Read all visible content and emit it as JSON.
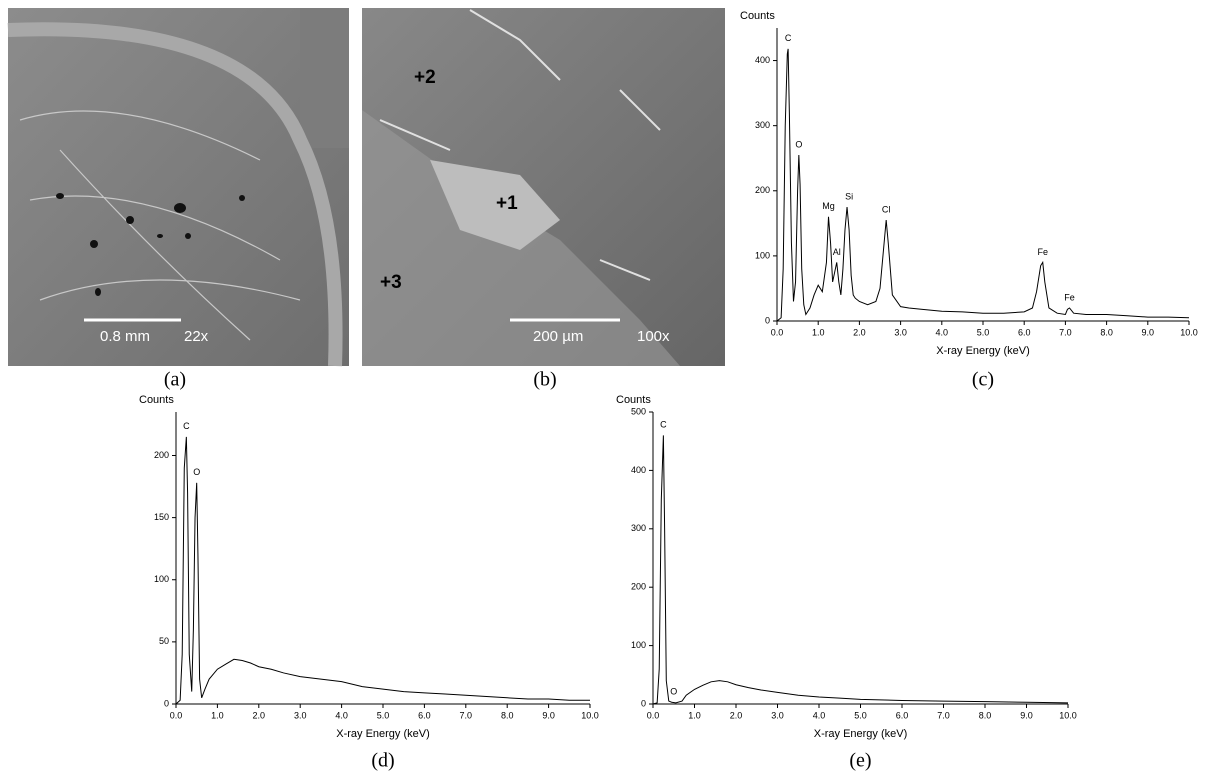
{
  "images": [
    {
      "caption": "(a)",
      "scale_bar": "0.8 mm",
      "magnification": "22x"
    },
    {
      "caption": "(b)",
      "scale_bar": "200 µm",
      "magnification": "100x",
      "points": [
        "+2",
        "+1",
        "+3"
      ]
    }
  ],
  "chart_data": [
    {
      "type": "line",
      "caption": "(c)",
      "y_label": "Counts",
      "x_label": "X-ray Energy (keV)",
      "color": "#000000",
      "xlim": [
        0,
        10
      ],
      "ylim": [
        0,
        450
      ],
      "xticks": [
        {
          "value": 0,
          "label": "0.0"
        },
        {
          "value": 1,
          "label": "1.0"
        },
        {
          "value": 2,
          "label": "2.0"
        },
        {
          "value": 3,
          "label": "3.0"
        },
        {
          "value": 4,
          "label": "4.0"
        },
        {
          "value": 5,
          "label": "5.0"
        },
        {
          "value": 6,
          "label": "6.0"
        },
        {
          "value": 7,
          "label": "7.0"
        },
        {
          "value": 8,
          "label": "8.0"
        },
        {
          "value": 9,
          "label": "9.0"
        },
        {
          "value": 10,
          "label": "10.0"
        }
      ],
      "yticks": [
        0,
        100,
        200,
        300,
        400
      ],
      "x": [
        0.0,
        0.1,
        0.15,
        0.2,
        0.25,
        0.27,
        0.3,
        0.35,
        0.4,
        0.45,
        0.5,
        0.53,
        0.56,
        0.6,
        0.65,
        0.7,
        0.8,
        0.9,
        1.0,
        1.1,
        1.2,
        1.25,
        1.3,
        1.35,
        1.4,
        1.45,
        1.5,
        1.55,
        1.6,
        1.65,
        1.7,
        1.75,
        1.8,
        1.85,
        1.9,
        2.0,
        2.2,
        2.4,
        2.5,
        2.6,
        2.65,
        2.7,
        2.8,
        3.0,
        3.2,
        3.5,
        4.0,
        4.5,
        5.0,
        5.5,
        6.0,
        6.2,
        6.3,
        6.4,
        6.45,
        6.5,
        6.6,
        6.8,
        7.0,
        7.05,
        7.1,
        7.2,
        7.5,
        8.0,
        8.5,
        9.0,
        9.5,
        10.0
      ],
      "values": [
        0,
        5,
        80,
        300,
        410,
        418,
        320,
        120,
        30,
        60,
        200,
        255,
        210,
        80,
        25,
        10,
        20,
        40,
        55,
        45,
        90,
        160,
        120,
        60,
        75,
        90,
        60,
        40,
        80,
        140,
        175,
        140,
        70,
        40,
        35,
        30,
        25,
        30,
        50,
        120,
        155,
        120,
        40,
        22,
        20,
        18,
        15,
        14,
        12,
        12,
        14,
        20,
        45,
        85,
        90,
        60,
        20,
        12,
        10,
        18,
        20,
        12,
        10,
        10,
        8,
        6,
        6,
        5
      ],
      "annotations": [
        {
          "text": "C",
          "x": 0.27
        },
        {
          "text": "O",
          "x": 0.53
        },
        {
          "text": "Mg",
          "x": 1.25
        },
        {
          "text": "Al",
          "x": 1.45
        },
        {
          "text": "Si",
          "x": 1.75
        },
        {
          "text": "Cl",
          "x": 2.65
        },
        {
          "text": "Fe",
          "x": 6.45
        },
        {
          "text": "Fe",
          "x": 7.1
        }
      ]
    },
    {
      "type": "line",
      "caption": "(d)",
      "y_label": "Counts",
      "x_label": "X-ray Energy (keV)",
      "color": "#000000",
      "xlim": [
        0,
        10
      ],
      "ylim": [
        0,
        235
      ],
      "xticks": [
        {
          "value": 0,
          "label": "0.0"
        },
        {
          "value": 1,
          "label": "1.0"
        },
        {
          "value": 2,
          "label": "2.0"
        },
        {
          "value": 3,
          "label": "3.0"
        },
        {
          "value": 4,
          "label": "4.0"
        },
        {
          "value": 5,
          "label": "5.0"
        },
        {
          "value": 6,
          "label": "6.0"
        },
        {
          "value": 7,
          "label": "7.0"
        },
        {
          "value": 8,
          "label": "8.0"
        },
        {
          "value": 9,
          "label": "9.0"
        },
        {
          "value": 10,
          "label": "10.0"
        }
      ],
      "yticks": [
        0,
        50,
        100,
        150,
        200
      ],
      "x": [
        0,
        0.1,
        0.15,
        0.2,
        0.25,
        0.28,
        0.32,
        0.38,
        0.42,
        0.46,
        0.5,
        0.53,
        0.57,
        0.62,
        0.7,
        0.8,
        1.0,
        1.2,
        1.4,
        1.6,
        1.8,
        2.0,
        2.3,
        2.6,
        3.0,
        3.5,
        4.0,
        4.5,
        5.0,
        5.5,
        6.0,
        6.5,
        7.0,
        7.5,
        8.0,
        8.5,
        9.0,
        9.5,
        10.0
      ],
      "values": [
        0,
        3,
        40,
        190,
        215,
        170,
        40,
        10,
        60,
        150,
        178,
        120,
        20,
        5,
        12,
        20,
        28,
        32,
        36,
        35,
        33,
        30,
        28,
        25,
        22,
        20,
        18,
        14,
        12,
        10,
        9,
        8,
        7,
        6,
        5,
        4,
        4,
        3,
        3
      ],
      "annotations": [
        {
          "text": "C",
          "x": 0.25
        },
        {
          "text": "O",
          "x": 0.5
        }
      ]
    },
    {
      "type": "line",
      "caption": "(e)",
      "y_label": "Counts",
      "x_label": "X-ray Energy (keV)",
      "color": "#000000",
      "xlim": [
        0,
        10
      ],
      "ylim": [
        0,
        500
      ],
      "xticks": [
        {
          "value": 0,
          "label": "0.0"
        },
        {
          "value": 1,
          "label": "1.0"
        },
        {
          "value": 2,
          "label": "2.0"
        },
        {
          "value": 3,
          "label": "3.0"
        },
        {
          "value": 4,
          "label": "4.0"
        },
        {
          "value": 5,
          "label": "5.0"
        },
        {
          "value": 6,
          "label": "6.0"
        },
        {
          "value": 7,
          "label": "7.0"
        },
        {
          "value": 8,
          "label": "8.0"
        },
        {
          "value": 9,
          "label": "9.0"
        },
        {
          "value": 10,
          "label": "10.0"
        }
      ],
      "yticks": [
        0,
        100,
        200,
        300,
        400,
        500
      ],
      "x": [
        0,
        0.1,
        0.15,
        0.2,
        0.25,
        0.28,
        0.32,
        0.38,
        0.45,
        0.55,
        0.7,
        0.8,
        1.0,
        1.2,
        1.4,
        1.6,
        1.8,
        2.0,
        2.3,
        2.6,
        3.0,
        3.5,
        4.0,
        4.5,
        5.0,
        6.0,
        7.0,
        8.0,
        9.0,
        10.0
      ],
      "values": [
        0,
        2,
        60,
        350,
        460,
        300,
        40,
        5,
        3,
        2,
        5,
        15,
        25,
        32,
        38,
        40,
        38,
        33,
        28,
        24,
        20,
        15,
        12,
        10,
        8,
        6,
        5,
        4,
        3,
        2
      ],
      "annotations": [
        {
          "text": "C",
          "x": 0.25
        },
        {
          "text": "O",
          "x": 0.5
        }
      ]
    }
  ]
}
